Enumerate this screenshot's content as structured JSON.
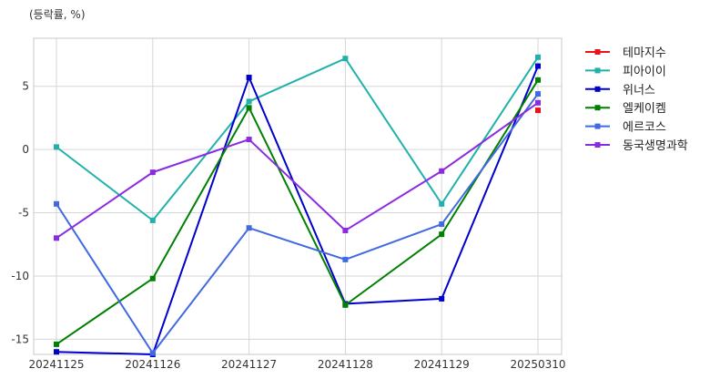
{
  "chart_data": {
    "type": "line",
    "unit_label": "(등락률, %)",
    "categories": [
      "20241125",
      "20241126",
      "20241127",
      "20241128",
      "20241129",
      "20250310"
    ],
    "y_ticks": [
      5,
      0,
      -5,
      -10,
      -15
    ],
    "ylim": [
      -16.2,
      8.8
    ],
    "grid": true,
    "legend_position": "right",
    "series": [
      {
        "name": "테마지수",
        "color": "#e8141b",
        "values": [
          null,
          null,
          null,
          null,
          null,
          3.1
        ]
      },
      {
        "name": "피아이이",
        "color": "#20b2aa",
        "values": [
          0.2,
          -5.6,
          3.8,
          7.2,
          -4.3,
          7.3
        ]
      },
      {
        "name": "위너스",
        "color": "#0000cd",
        "values": [
          -16.0,
          -16.2,
          5.7,
          -12.2,
          -11.8,
          6.6
        ]
      },
      {
        "name": "엘케이켐",
        "color": "#008000",
        "values": [
          -15.4,
          -10.2,
          3.3,
          -12.3,
          -6.7,
          5.5
        ]
      },
      {
        "name": "에르코스",
        "color": "#4169e1",
        "values": [
          -4.3,
          -16.1,
          -6.2,
          -8.7,
          -5.9,
          4.4
        ]
      },
      {
        "name": "동국생명과학",
        "color": "#8a2be2",
        "values": [
          -7.0,
          -1.8,
          0.8,
          -6.4,
          -1.7,
          3.7
        ]
      }
    ]
  }
}
